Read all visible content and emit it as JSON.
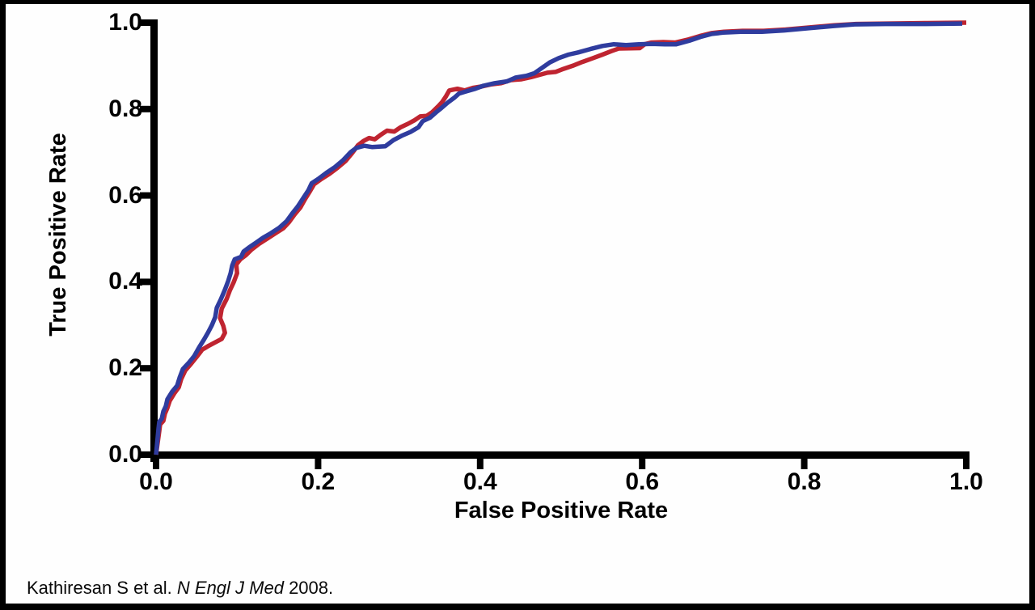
{
  "frame": {
    "border_color": "#000000",
    "background": "#fefefe"
  },
  "caption": {
    "prefix": "Kathiresan S et al. ",
    "journal": "N Engl J Med",
    "suffix": " 2008."
  },
  "chart_data": {
    "type": "line",
    "title": "",
    "xlabel": "False Positive Rate",
    "ylabel": "True Positive Rate",
    "xlim": [
      0,
      1
    ],
    "ylim": [
      0,
      1
    ],
    "x_ticks": [
      "0.0",
      "0.2",
      "0.4",
      "0.6",
      "0.8",
      "1.0"
    ],
    "y_ticks": [
      "0.0",
      "0.2",
      "0.4",
      "0.6",
      "0.8",
      "1.0"
    ],
    "grid": false,
    "legend": "none",
    "axis_color": "#000000",
    "text_color": "#000000",
    "series": [
      {
        "name": "red-roc-curve",
        "color": "#BF2430",
        "points": [
          [
            0.0,
            0.0
          ],
          [
            0.004,
            0.055
          ],
          [
            0.005,
            0.07
          ],
          [
            0.009,
            0.078
          ],
          [
            0.011,
            0.095
          ],
          [
            0.014,
            0.108
          ],
          [
            0.017,
            0.125
          ],
          [
            0.023,
            0.143
          ],
          [
            0.028,
            0.156
          ],
          [
            0.031,
            0.175
          ],
          [
            0.036,
            0.195
          ],
          [
            0.043,
            0.21
          ],
          [
            0.05,
            0.226
          ],
          [
            0.057,
            0.243
          ],
          [
            0.065,
            0.252
          ],
          [
            0.073,
            0.26
          ],
          [
            0.081,
            0.268
          ],
          [
            0.085,
            0.282
          ],
          [
            0.083,
            0.298
          ],
          [
            0.079,
            0.316
          ],
          [
            0.081,
            0.338
          ],
          [
            0.087,
            0.36
          ],
          [
            0.091,
            0.38
          ],
          [
            0.096,
            0.4
          ],
          [
            0.1,
            0.42
          ],
          [
            0.099,
            0.44
          ],
          [
            0.104,
            0.452
          ],
          [
            0.111,
            0.462
          ],
          [
            0.118,
            0.475
          ],
          [
            0.127,
            0.488
          ],
          [
            0.137,
            0.5
          ],
          [
            0.147,
            0.512
          ],
          [
            0.157,
            0.524
          ],
          [
            0.164,
            0.538
          ],
          [
            0.171,
            0.556
          ],
          [
            0.178,
            0.572
          ],
          [
            0.184,
            0.592
          ],
          [
            0.19,
            0.61
          ],
          [
            0.195,
            0.626
          ],
          [
            0.204,
            0.638
          ],
          [
            0.214,
            0.65
          ],
          [
            0.224,
            0.664
          ],
          [
            0.234,
            0.68
          ],
          [
            0.242,
            0.698
          ],
          [
            0.249,
            0.716
          ],
          [
            0.256,
            0.726
          ],
          [
            0.263,
            0.733
          ],
          [
            0.27,
            0.73
          ],
          [
            0.277,
            0.74
          ],
          [
            0.285,
            0.75
          ],
          [
            0.294,
            0.748
          ],
          [
            0.302,
            0.758
          ],
          [
            0.311,
            0.766
          ],
          [
            0.319,
            0.774
          ],
          [
            0.326,
            0.783
          ],
          [
            0.334,
            0.784
          ],
          [
            0.341,
            0.793
          ],
          [
            0.348,
            0.806
          ],
          [
            0.353,
            0.816
          ],
          [
            0.358,
            0.83
          ],
          [
            0.362,
            0.843
          ],
          [
            0.372,
            0.847
          ],
          [
            0.381,
            0.843
          ],
          [
            0.391,
            0.849
          ],
          [
            0.401,
            0.852
          ],
          [
            0.413,
            0.857
          ],
          [
            0.426,
            0.86
          ],
          [
            0.438,
            0.867
          ],
          [
            0.451,
            0.869
          ],
          [
            0.463,
            0.874
          ],
          [
            0.473,
            0.879
          ],
          [
            0.483,
            0.884
          ],
          [
            0.493,
            0.886
          ],
          [
            0.503,
            0.893
          ],
          [
            0.514,
            0.9
          ],
          [
            0.526,
            0.909
          ],
          [
            0.538,
            0.917
          ],
          [
            0.551,
            0.926
          ],
          [
            0.562,
            0.934
          ],
          [
            0.571,
            0.94
          ],
          [
            0.597,
            0.941
          ],
          [
            0.603,
            0.95
          ],
          [
            0.611,
            0.954
          ],
          [
            0.626,
            0.955
          ],
          [
            0.641,
            0.954
          ],
          [
            0.657,
            0.961
          ],
          [
            0.671,
            0.969
          ],
          [
            0.686,
            0.976
          ],
          [
            0.701,
            0.979
          ],
          [
            0.724,
            0.981
          ],
          [
            0.75,
            0.981
          ],
          [
            0.777,
            0.984
          ],
          [
            0.807,
            0.989
          ],
          [
            0.837,
            0.994
          ],
          [
            0.864,
            0.997
          ],
          [
            0.902,
            0.998
          ],
          [
            0.952,
            0.999
          ],
          [
            1.0,
            1.0
          ]
        ]
      },
      {
        "name": "blue-roc-curve",
        "color": "#2F3C9E",
        "points": [
          [
            0.0,
            0.0
          ],
          [
            0.003,
            0.06
          ],
          [
            0.004,
            0.076
          ],
          [
            0.007,
            0.083
          ],
          [
            0.009,
            0.1
          ],
          [
            0.012,
            0.112
          ],
          [
            0.014,
            0.128
          ],
          [
            0.02,
            0.146
          ],
          [
            0.026,
            0.16
          ],
          [
            0.029,
            0.178
          ],
          [
            0.033,
            0.198
          ],
          [
            0.04,
            0.212
          ],
          [
            0.047,
            0.228
          ],
          [
            0.053,
            0.248
          ],
          [
            0.059,
            0.266
          ],
          [
            0.064,
            0.282
          ],
          [
            0.069,
            0.3
          ],
          [
            0.073,
            0.318
          ],
          [
            0.075,
            0.34
          ],
          [
            0.08,
            0.36
          ],
          [
            0.085,
            0.382
          ],
          [
            0.089,
            0.402
          ],
          [
            0.092,
            0.42
          ],
          [
            0.094,
            0.438
          ],
          [
            0.097,
            0.452
          ],
          [
            0.105,
            0.458
          ],
          [
            0.108,
            0.47
          ],
          [
            0.115,
            0.48
          ],
          [
            0.123,
            0.49
          ],
          [
            0.132,
            0.502
          ],
          [
            0.142,
            0.513
          ],
          [
            0.152,
            0.525
          ],
          [
            0.161,
            0.54
          ],
          [
            0.168,
            0.558
          ],
          [
            0.175,
            0.575
          ],
          [
            0.182,
            0.595
          ],
          [
            0.188,
            0.612
          ],
          [
            0.192,
            0.628
          ],
          [
            0.2,
            0.638
          ],
          [
            0.21,
            0.652
          ],
          [
            0.221,
            0.666
          ],
          [
            0.231,
            0.682
          ],
          [
            0.24,
            0.7
          ],
          [
            0.247,
            0.71
          ],
          [
            0.257,
            0.715
          ],
          [
            0.267,
            0.712
          ],
          [
            0.283,
            0.714
          ],
          [
            0.293,
            0.728
          ],
          [
            0.303,
            0.738
          ],
          [
            0.314,
            0.747
          ],
          [
            0.324,
            0.758
          ],
          [
            0.329,
            0.772
          ],
          [
            0.338,
            0.78
          ],
          [
            0.346,
            0.793
          ],
          [
            0.352,
            0.802
          ],
          [
            0.36,
            0.815
          ],
          [
            0.368,
            0.826
          ],
          [
            0.374,
            0.836
          ],
          [
            0.383,
            0.841
          ],
          [
            0.394,
            0.847
          ],
          [
            0.404,
            0.854
          ],
          [
            0.418,
            0.86
          ],
          [
            0.433,
            0.864
          ],
          [
            0.444,
            0.873
          ],
          [
            0.457,
            0.877
          ],
          [
            0.467,
            0.883
          ],
          [
            0.476,
            0.895
          ],
          [
            0.486,
            0.908
          ],
          [
            0.497,
            0.918
          ],
          [
            0.509,
            0.926
          ],
          [
            0.521,
            0.931
          ],
          [
            0.536,
            0.939
          ],
          [
            0.551,
            0.946
          ],
          [
            0.565,
            0.95
          ],
          [
            0.58,
            0.948
          ],
          [
            0.596,
            0.95
          ],
          [
            0.612,
            0.951
          ],
          [
            0.628,
            0.95
          ],
          [
            0.642,
            0.95
          ],
          [
            0.658,
            0.958
          ],
          [
            0.672,
            0.967
          ],
          [
            0.686,
            0.974
          ],
          [
            0.7,
            0.977
          ],
          [
            0.722,
            0.979
          ],
          [
            0.748,
            0.979
          ],
          [
            0.775,
            0.982
          ],
          [
            0.805,
            0.987
          ],
          [
            0.835,
            0.992
          ],
          [
            0.862,
            0.996
          ],
          [
            0.9,
            0.997
          ],
          [
            0.95,
            0.997
          ],
          [
            0.995,
            0.998
          ]
        ]
      }
    ]
  }
}
